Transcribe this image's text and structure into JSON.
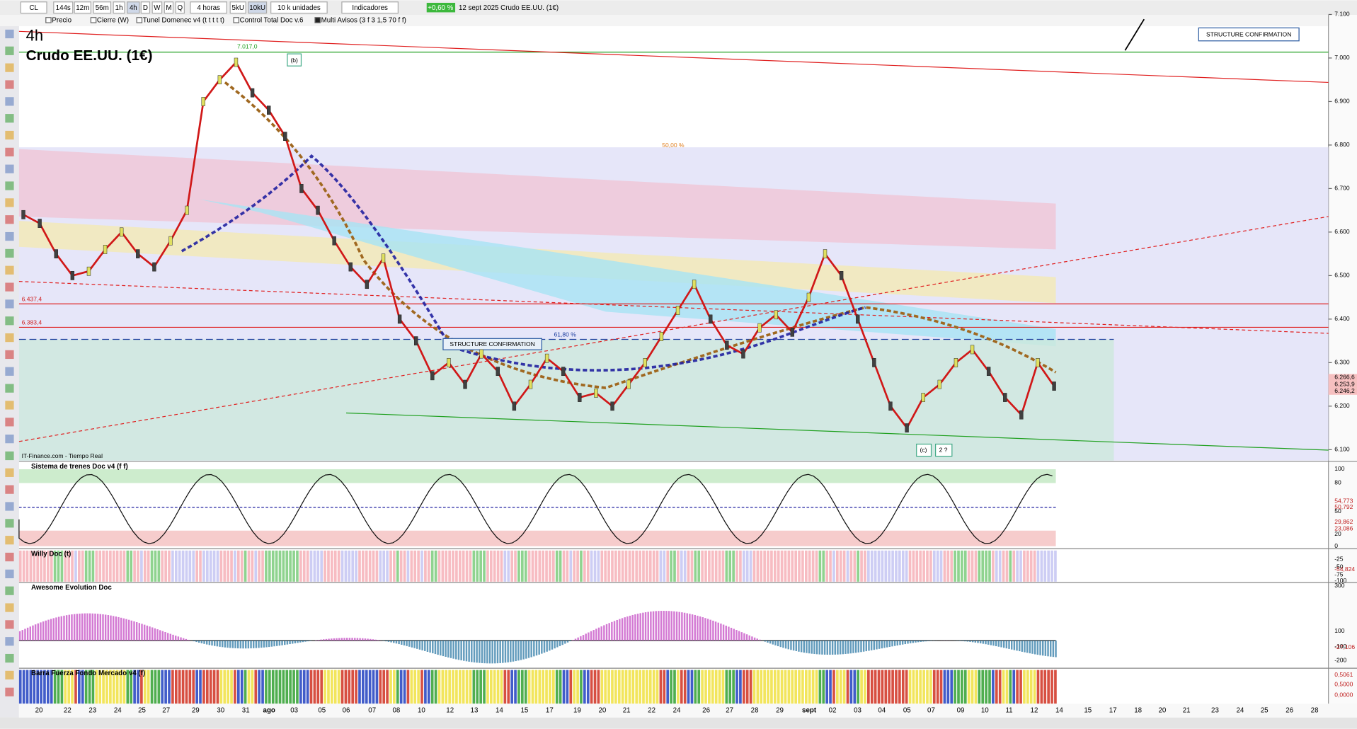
{
  "toolbar": {
    "symbol": "CL",
    "timeframes": [
      "144s",
      "12m",
      "56m",
      "1h",
      "4h",
      "D",
      "W",
      "M",
      "Q"
    ],
    "period": "4 horas",
    "units": [
      "5kU",
      "10kU"
    ],
    "unit_size": "10 k unidades",
    "indicators": "Indicadores",
    "change": "+0,60 %",
    "info": "12 sept 2025 Crudo EE.UU. (1€)"
  },
  "legend_bar": [
    "Precio",
    "Cierre (W)",
    "Tunel Domenec v4 (t t t t t)",
    "Control Total Doc v.6",
    "Multi Avisos (3 f 3 1,5 70 f f)"
  ],
  "chart": {
    "timeframe": "4h",
    "title": "Crudo EE.UU. (1€)",
    "source": "IT-Finance.com - Tiempo Real",
    "ylim": [
      6075,
      7097
    ],
    "price_ticks": [
      {
        "value": 7100,
        "label": "7.100"
      },
      {
        "value": 7000,
        "label": "7.000"
      },
      {
        "value": 6900,
        "label": "6.900"
      },
      {
        "value": 6800,
        "label": "6.800"
      },
      {
        "value": 6700,
        "label": "6.700"
      },
      {
        "value": 6600,
        "label": "6.600"
      },
      {
        "value": 6500,
        "label": "6.500"
      },
      {
        "value": 6400,
        "label": "6.400"
      },
      {
        "value": 6300,
        "label": "6.300"
      },
      {
        "value": 6200,
        "label": "6.200"
      },
      {
        "value": 6100,
        "label": "6.100"
      }
    ],
    "annotations": {
      "high": "7.017,0",
      "wave_b": "(b)",
      "fib_50": "50,00 %",
      "fib_618": "61,80 %",
      "structure_1": "STRUCTURE CONFIRMATION",
      "structure_2": "STRUCTURE CONFIRMATION",
      "level_1": "6.437,4",
      "level_2": "6.383,4",
      "wave_c": "(c)",
      "wave_2": "2 ?"
    },
    "last_prices": [
      "6.266,6",
      "6.253,9",
      "6.246,2"
    ],
    "closes": [
      6640,
      6620,
      6550,
      6500,
      6510,
      6560,
      6600,
      6550,
      6520,
      6580,
      6650,
      6900,
      6950,
      6990,
      6920,
      6880,
      6820,
      6700,
      6650,
      6580,
      6520,
      6480,
      6540,
      6400,
      6350,
      6270,
      6300,
      6250,
      6320,
      6280,
      6200,
      6250,
      6310,
      6280,
      6220,
      6230,
      6200,
      6250,
      6300,
      6360,
      6420,
      6480,
      6400,
      6340,
      6320,
      6380,
      6410,
      6370,
      6450,
      6550,
      6500,
      6400,
      6300,
      6200,
      6150,
      6220,
      6250,
      6300,
      6330,
      6280,
      6220,
      6180,
      6300,
      6246
    ]
  },
  "panels": [
    {
      "title": "Sistema de trenes Doc v4 (f f)",
      "ticks": [
        "100",
        "80",
        "50",
        "20",
        "0"
      ],
      "values": [
        "54,773",
        "50,792",
        "29,862",
        "23,086"
      ]
    },
    {
      "title": "Willy Doc (t)",
      "ticks": [
        "-25",
        "-50",
        "-75",
        "-100"
      ],
      "values": [
        "-54,824"
      ]
    },
    {
      "title": "Awesome Evolution Doc",
      "ticks": [
        "300",
        "100",
        "-100",
        "-200"
      ],
      "values": [
        "-27,106"
      ]
    },
    {
      "title": "Barra Fuerza Fondo Mercado v4 (f)",
      "ticks": [],
      "values": [
        "0,5061",
        "0,5000",
        "0,0000"
      ]
    }
  ],
  "dates": [
    "20",
    "22",
    "23",
    "24",
    "25",
    "27",
    "29",
    "30",
    "31",
    "ago",
    "03",
    "05",
    "06",
    "07",
    "08",
    "10",
    "12",
    "13",
    "14",
    "15",
    "17",
    "19",
    "20",
    "21",
    "22",
    "24",
    "26",
    "27",
    "28",
    "29",
    "sept",
    "02",
    "03",
    "04",
    "05",
    "07",
    "09",
    "10",
    "11",
    "12",
    "14",
    "15",
    "17",
    "18",
    "20",
    "21",
    "23",
    "24",
    "25",
    "26",
    "28"
  ]
}
